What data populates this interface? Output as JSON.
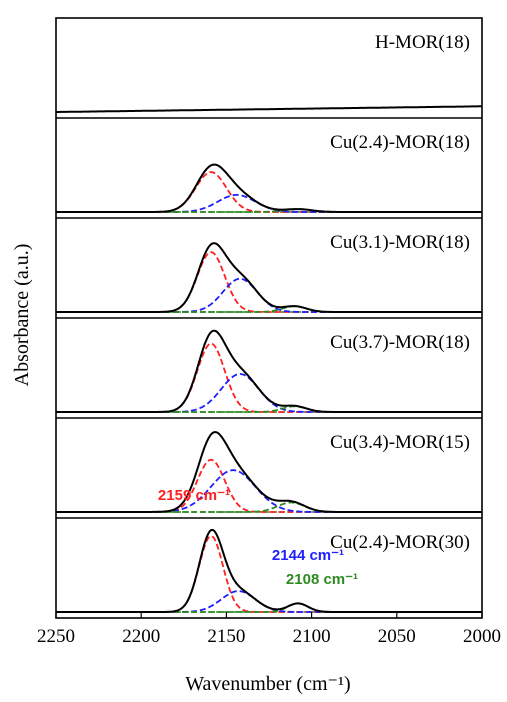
{
  "chart_data": {
    "type": "line",
    "title": "",
    "xlabel": "Wavenumber (cm⁻¹)",
    "ylabel": "Absorbance (a.u.)",
    "xlim": [
      2250,
      2000
    ],
    "x_ticks": [
      "2250",
      "2200",
      "2150",
      "2100",
      "2050",
      "2000"
    ],
    "x_tick_values": [
      2250,
      2200,
      2150,
      2100,
      2050,
      2000
    ],
    "grid": false,
    "layout": "stacked panels",
    "colors": {
      "measured": "#000000",
      "peak_2159": "#ff2020",
      "peak_2144": "#1f1fff",
      "peak_2108": "#2e8b22"
    },
    "peak_labels": [
      {
        "text": "2159 cm⁻¹",
        "color": "#ff2020",
        "position_cm": 2159
      },
      {
        "text": "2144 cm⁻¹",
        "color": "#1f1fff",
        "position_cm": 2144
      },
      {
        "text": "2108 cm⁻¹",
        "color": "#2e8b22",
        "position_cm": 2108
      }
    ],
    "panels": [
      {
        "label": "H-MOR(18)",
        "baseline": [
          0.0,
          0.06
        ],
        "peaks": []
      },
      {
        "label": "Cu(2.4)-MOR(18)",
        "baseline": [
          0.0,
          0.0
        ],
        "peaks": [
          {
            "center": 2159,
            "height": 0.42,
            "sigma": 9
          },
          {
            "center": 2144,
            "height": 0.18,
            "sigma": 11
          },
          {
            "center": 2108,
            "height": 0.03,
            "sigma": 8
          }
        ]
      },
      {
        "label": "Cu(3.1)-MOR(18)",
        "baseline": [
          0.0,
          0.0
        ],
        "peaks": [
          {
            "center": 2159,
            "height": 0.63,
            "sigma": 8
          },
          {
            "center": 2142,
            "height": 0.35,
            "sigma": 10
          },
          {
            "center": 2110,
            "height": 0.06,
            "sigma": 7
          }
        ]
      },
      {
        "label": "Cu(3.7)-MOR(18)",
        "baseline": [
          0.0,
          0.0
        ],
        "peaks": [
          {
            "center": 2159,
            "height": 0.72,
            "sigma": 8
          },
          {
            "center": 2142,
            "height": 0.4,
            "sigma": 11
          },
          {
            "center": 2110,
            "height": 0.06,
            "sigma": 7
          }
        ]
      },
      {
        "label": "Cu(3.4)-MOR(15)",
        "baseline": [
          0.0,
          0.0
        ],
        "peaks": [
          {
            "center": 2159,
            "height": 0.55,
            "sigma": 8
          },
          {
            "center": 2146,
            "height": 0.44,
            "sigma": 13
          },
          {
            "center": 2112,
            "height": 0.1,
            "sigma": 8
          }
        ]
      },
      {
        "label": "Cu(2.4)-MOR(30)",
        "baseline": [
          0.0,
          0.0
        ],
        "peaks": [
          {
            "center": 2159,
            "height": 0.8,
            "sigma": 7
          },
          {
            "center": 2143,
            "height": 0.22,
            "sigma": 10
          },
          {
            "center": 2108,
            "height": 0.09,
            "sigma": 6
          }
        ]
      }
    ]
  }
}
